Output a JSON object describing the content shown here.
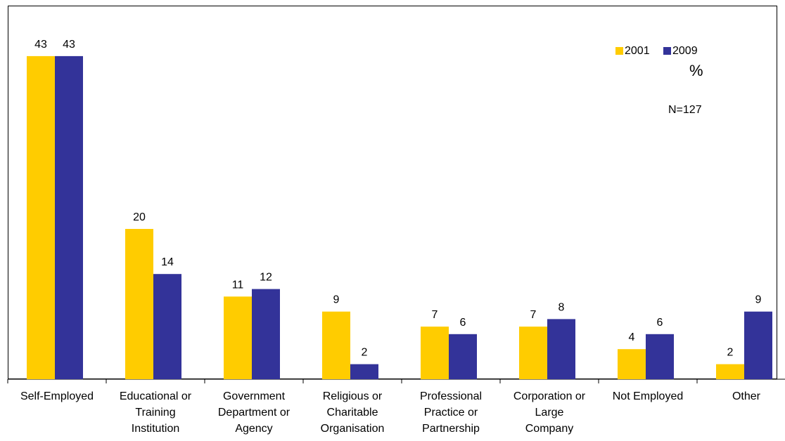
{
  "chart_data": {
    "type": "bar",
    "categories": [
      "Self-Employed",
      "Educational or\nTraining\nInstitution",
      "Government\nDepartment or\nAgency",
      "Religious or\nCharitable\nOrganisation",
      "Professional\nPractice or\nPartnership",
      "Corporation or\nLarge\nCompany",
      "Not Employed",
      "Other"
    ],
    "series": [
      {
        "name": "2001",
        "color": "#FFCC00",
        "values": [
          43,
          20,
          11,
          9,
          7,
          7,
          4,
          2
        ]
      },
      {
        "name": "2009",
        "color": "#333399",
        "values": [
          43,
          14,
          12,
          2,
          6,
          8,
          6,
          9
        ]
      }
    ],
    "unit_label": "%",
    "note": "N=127",
    "ylim": [
      0,
      45
    ],
    "grid": false,
    "legend_position": "top-right"
  }
}
